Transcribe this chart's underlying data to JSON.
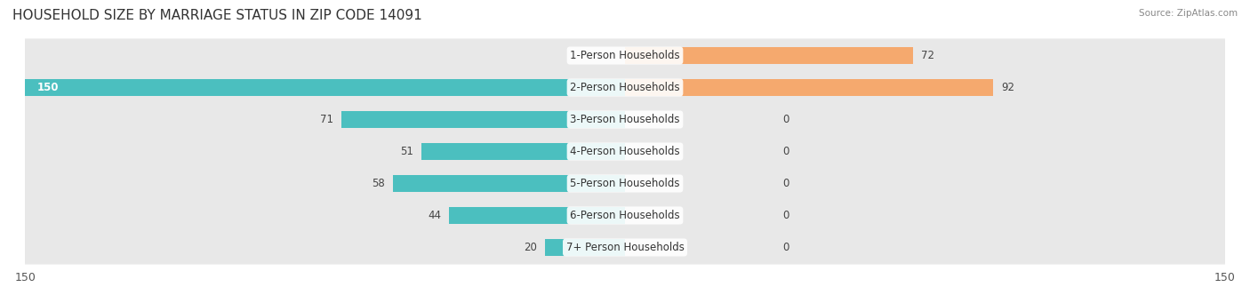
{
  "title": "HOUSEHOLD SIZE BY MARRIAGE STATUS IN ZIP CODE 14091",
  "source": "Source: ZipAtlas.com",
  "categories": [
    "7+ Person Households",
    "6-Person Households",
    "5-Person Households",
    "4-Person Households",
    "3-Person Households",
    "2-Person Households",
    "1-Person Households"
  ],
  "family_values": [
    20,
    44,
    58,
    51,
    71,
    150,
    0
  ],
  "nonfamily_values": [
    0,
    0,
    0,
    0,
    0,
    92,
    72
  ],
  "family_color": "#4bbfbf",
  "nonfamily_color": "#f5a96e",
  "axis_limit": 150,
  "bar_height": 0.55,
  "row_bg_color": "#e8e8e8",
  "label_color": "#555555",
  "title_fontsize": 11,
  "tick_fontsize": 9,
  "label_fontsize": 8.5,
  "value_fontsize": 8.5,
  "bg_color": "#ffffff"
}
